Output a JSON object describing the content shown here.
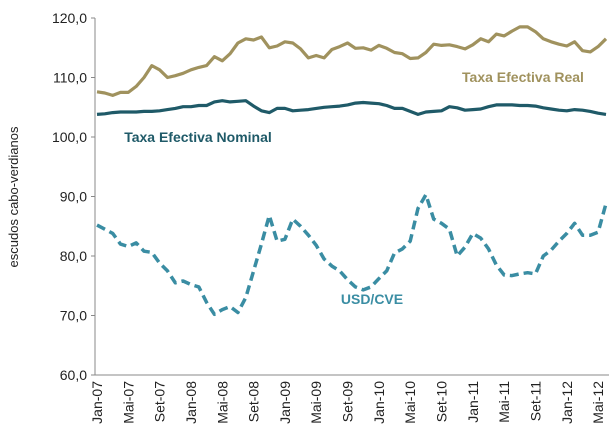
{
  "chart_data": {
    "type": "line",
    "y_label": "escudos cabo-verdianos",
    "categories": [
      "Jan-07",
      null,
      null,
      null,
      "Mai-07",
      null,
      null,
      null,
      "Set-07",
      null,
      null,
      null,
      "Jan-08",
      null,
      null,
      null,
      "Mai-08",
      null,
      null,
      null,
      "Set-08",
      null,
      null,
      null,
      "Jan-09",
      null,
      null,
      null,
      "Mai-09",
      null,
      null,
      null,
      "Set-09",
      null,
      null,
      null,
      "Jan-10",
      null,
      null,
      null,
      "Mai-10",
      null,
      null,
      null,
      "Set-10",
      null,
      null,
      null,
      "Jan-11",
      null,
      null,
      null,
      "Mai-11",
      null,
      null,
      null,
      "Set-11",
      null,
      null,
      null,
      "Jan-12",
      null,
      null,
      null,
      "Mai-12",
      null
    ],
    "ylim": [
      60,
      120
    ],
    "yticks": [
      {
        "value": 60,
        "label": "60,0"
      },
      {
        "value": 70,
        "label": "70,0"
      },
      {
        "value": 80,
        "label": "80,0"
      },
      {
        "value": 90,
        "label": "90,0"
      },
      {
        "value": 100,
        "label": "100,0"
      },
      {
        "value": 110,
        "label": "110,0"
      },
      {
        "value": 120,
        "label": "120,0"
      }
    ],
    "series": [
      {
        "name": "Taxa Efectiva Real",
        "color": "#a0925e",
        "dashed": false,
        "values": [
          107.6,
          107.4,
          107.0,
          107.5,
          107.5,
          108.5,
          110,
          112,
          111.3,
          110,
          110.3,
          110.7,
          111.3,
          111.7,
          112,
          113.5,
          112.8,
          114,
          115.8,
          116.5,
          116.3,
          116.8,
          115,
          115.3,
          116,
          115.8,
          114.8,
          113.3,
          113.7,
          113.3,
          114.7,
          115.2,
          115.8,
          114.9,
          115,
          114.6,
          115.4,
          114.9,
          114.2,
          114,
          113.2,
          113.3,
          114.2,
          115.6,
          115.4,
          115.5,
          115.2,
          114.8,
          115.5,
          116.5,
          116,
          117.3,
          117,
          117.8,
          118.5,
          118.5,
          117.7,
          116.5,
          116,
          115.6,
          115.3,
          116,
          114.5,
          114.3,
          115.2,
          116.5
        ]
      },
      {
        "name": "Taxa Efectiva Nominal",
        "color": "#1f5a68",
        "dashed": false,
        "values": [
          103.8,
          103.9,
          104.1,
          104.2,
          104.2,
          104.2,
          104.3,
          104.3,
          104.4,
          104.6,
          104.8,
          105.1,
          105.1,
          105.3,
          105.3,
          105.9,
          106.1,
          105.9,
          106.0,
          106.1,
          105.2,
          104.4,
          104.1,
          104.8,
          104.8,
          104.4,
          104.5,
          104.6,
          104.8,
          105.0,
          105.1,
          105.2,
          105.4,
          105.7,
          105.8,
          105.7,
          105.6,
          105.3,
          104.8,
          104.8,
          104.3,
          103.8,
          104.2,
          104.3,
          104.4,
          105.1,
          104.9,
          104.5,
          104.6,
          104.7,
          105.1,
          105.4,
          105.4,
          105.4,
          105.3,
          105.3,
          105.2,
          104.9,
          104.7,
          104.5,
          104.4,
          104.6,
          104.5,
          104.3,
          104.0,
          103.8
        ]
      },
      {
        "name": "USD/CVE",
        "color": "#3a8da3",
        "dashed": true,
        "values": [
          85.2,
          84.5,
          83.8,
          82,
          81.6,
          82.2,
          80.8,
          80.6,
          78.8,
          77.5,
          75.5,
          75.8,
          75.2,
          74.8,
          72.2,
          70.2,
          71,
          71.5,
          70.5,
          73,
          77.5,
          82,
          86.8,
          82.5,
          82.8,
          86.2,
          85,
          83.5,
          81.8,
          79.5,
          78.3,
          77.5,
          76,
          74.8,
          74.3,
          74.8,
          76.2,
          77.5,
          80.5,
          81.2,
          82.5,
          88,
          90.3,
          86.2,
          85.5,
          84.5,
          80,
          81.5,
          83.8,
          83,
          81.2,
          78.5,
          76.8,
          76.7,
          77,
          77.2,
          77,
          80,
          81,
          82.5,
          83.8,
          85.5,
          83.5,
          83.5,
          84,
          88.8
        ]
      }
    ]
  }
}
